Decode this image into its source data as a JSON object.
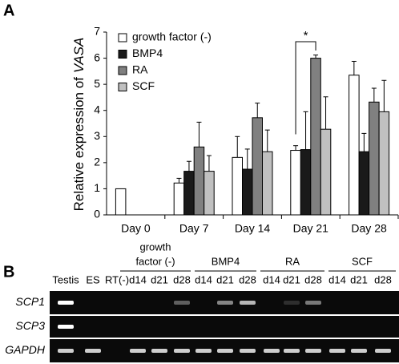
{
  "chart_data": {
    "type": "bar",
    "panel_label": "A",
    "ylabel": "Relative expression of",
    "ylabel_italic": "VASA",
    "categories": [
      "Day 0",
      "Day 7",
      "Day 14",
      "Day 21",
      "Day 28"
    ],
    "ylim": [
      0,
      7
    ],
    "yticks": [
      0,
      1,
      2,
      3,
      4,
      5,
      6,
      7
    ],
    "grid": false,
    "legend": "top-left",
    "significance": "*",
    "series": [
      {
        "name": "growth factor (-)",
        "color": "#ffffff",
        "values": [
          1.0,
          1.22,
          2.2,
          2.47,
          5.35
        ],
        "errors": [
          null,
          0.18,
          0.8,
          0.18,
          0.53
        ]
      },
      {
        "name": "BMP4",
        "color": "#1a1a1a",
        "values": [
          null,
          1.67,
          1.75,
          2.5,
          2.42
        ],
        "errors": [
          null,
          0.38,
          0.77,
          1.45,
          0.7
        ]
      },
      {
        "name": "RA",
        "color": "#808080",
        "values": [
          null,
          2.6,
          3.72,
          6.0,
          4.32
        ],
        "errors": [
          null,
          0.95,
          0.56,
          0.12,
          0.53
        ]
      },
      {
        "name": "SCF",
        "color": "#c0c0c0",
        "values": [
          null,
          1.67,
          2.42,
          3.28,
          3.95
        ],
        "errors": [
          null,
          0.6,
          0.83,
          1.24,
          1.2
        ]
      }
    ]
  },
  "gel": {
    "panel_label": "B",
    "groups": [
      {
        "lines": [
          "growth",
          "factor (-)"
        ]
      },
      {
        "lines": [
          "BMP4"
        ]
      },
      {
        "lines": [
          "RA"
        ]
      },
      {
        "lines": [
          "SCF"
        ]
      }
    ],
    "lanes": [
      "Testis",
      "ES",
      "RT(-)",
      "d14",
      "d21",
      "d28",
      "d14",
      "d21",
      "d28",
      "d14",
      "d21",
      "d28",
      "d14",
      "d21",
      "d28"
    ],
    "rows": [
      "SCP1",
      "SCP3",
      "GAPDH"
    ]
  }
}
